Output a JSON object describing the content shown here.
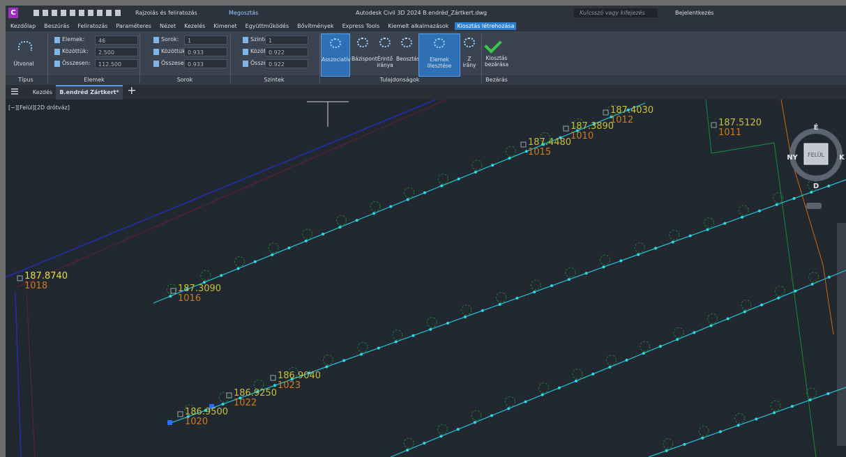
{
  "title_bar": {
    "workspace": "Rajzolás és feliratozás",
    "share": "Megosztás",
    "title": "Autodesk Civil 3D 2024  B.endréd_Zártkert.dwg",
    "search_placeholder": "Kulcsszó vagy kifejezés",
    "sign_in": "Bejelentkezés"
  },
  "ribbon_tabs": [
    {
      "label": "Kezdőlap",
      "active": false
    },
    {
      "label": "Beszúrás",
      "active": false
    },
    {
      "label": "Feliratozás",
      "active": false
    },
    {
      "label": "Paraméteres",
      "active": false
    },
    {
      "label": "Nézet",
      "active": false
    },
    {
      "label": "Kezelés",
      "active": false
    },
    {
      "label": "Kimenet",
      "active": false
    },
    {
      "label": "Együttműködés",
      "active": false
    },
    {
      "label": "Bővítmények",
      "active": false
    },
    {
      "label": "Express Tools",
      "active": false
    },
    {
      "label": "Kiemelt alkalmazások",
      "active": false
    },
    {
      "label": "Kiosztás létrehozása",
      "active": true
    }
  ],
  "ribbon": {
    "type_panel": {
      "label": "Típus",
      "button": "Útvonal"
    },
    "fields_panels": [
      {
        "label": "Elemek",
        "rows": [
          {
            "label": "Elemek:",
            "value": "46"
          },
          {
            "label": "Közöttük:",
            "value": "2.500"
          },
          {
            "label": "Összesen:",
            "value": "112.500"
          }
        ]
      },
      {
        "label": "Sorok",
        "rows": [
          {
            "label": "Sorok:",
            "value": "1"
          },
          {
            "label": "Közöttük:",
            "value": "0.933"
          },
          {
            "label": "Összesen:",
            "value": "0.933"
          }
        ]
      },
      {
        "label": "Szintek",
        "rows": [
          {
            "label": "Szintek:",
            "value": "1"
          },
          {
            "label": "Közöttük:",
            "value": "0.922"
          },
          {
            "label": "Összesen:",
            "value": "0.922"
          }
        ]
      }
    ],
    "properties_panel": {
      "label": "Tulajdonságok",
      "buttons": [
        {
          "label": "Asszociatív",
          "active": true
        },
        {
          "label": "Bázispont",
          "active": false
        },
        {
          "label": "Érintő iránya",
          "active": false
        },
        {
          "label": "Beosztás",
          "active": false
        },
        {
          "label": "Elemek illesztése",
          "active": true
        },
        {
          "label": "Z irány",
          "active": false
        }
      ]
    },
    "close_panel": {
      "label": "Bezárás",
      "button": "Kiosztás bezárása"
    }
  },
  "file_tabs": [
    "Kezdés",
    "B.endréd Zártkert*"
  ],
  "viewport": {
    "label": "[−][Felül][2D drótváz]",
    "view_cube": {
      "north": "É",
      "west": "NY",
      "east": "K",
      "south": "D",
      "face": "FELÜL"
    },
    "points": [
      {
        "elevation": "187.4030",
        "number": "1012"
      },
      {
        "elevation": "187.3890",
        "number": "1010"
      },
      {
        "elevation": "187.4480",
        "number": "1015"
      },
      {
        "elevation": "187.5120",
        "number": "1011"
      },
      {
        "elevation": "187.8740",
        "number": "1018"
      },
      {
        "elevation": "187.3090",
        "number": "1016"
      },
      {
        "elevation": "186.9040",
        "number": "1023"
      },
      {
        "elevation": "186.9250",
        "number": "1022"
      },
      {
        "elevation": "186.9500",
        "number": "1020"
      }
    ]
  }
}
